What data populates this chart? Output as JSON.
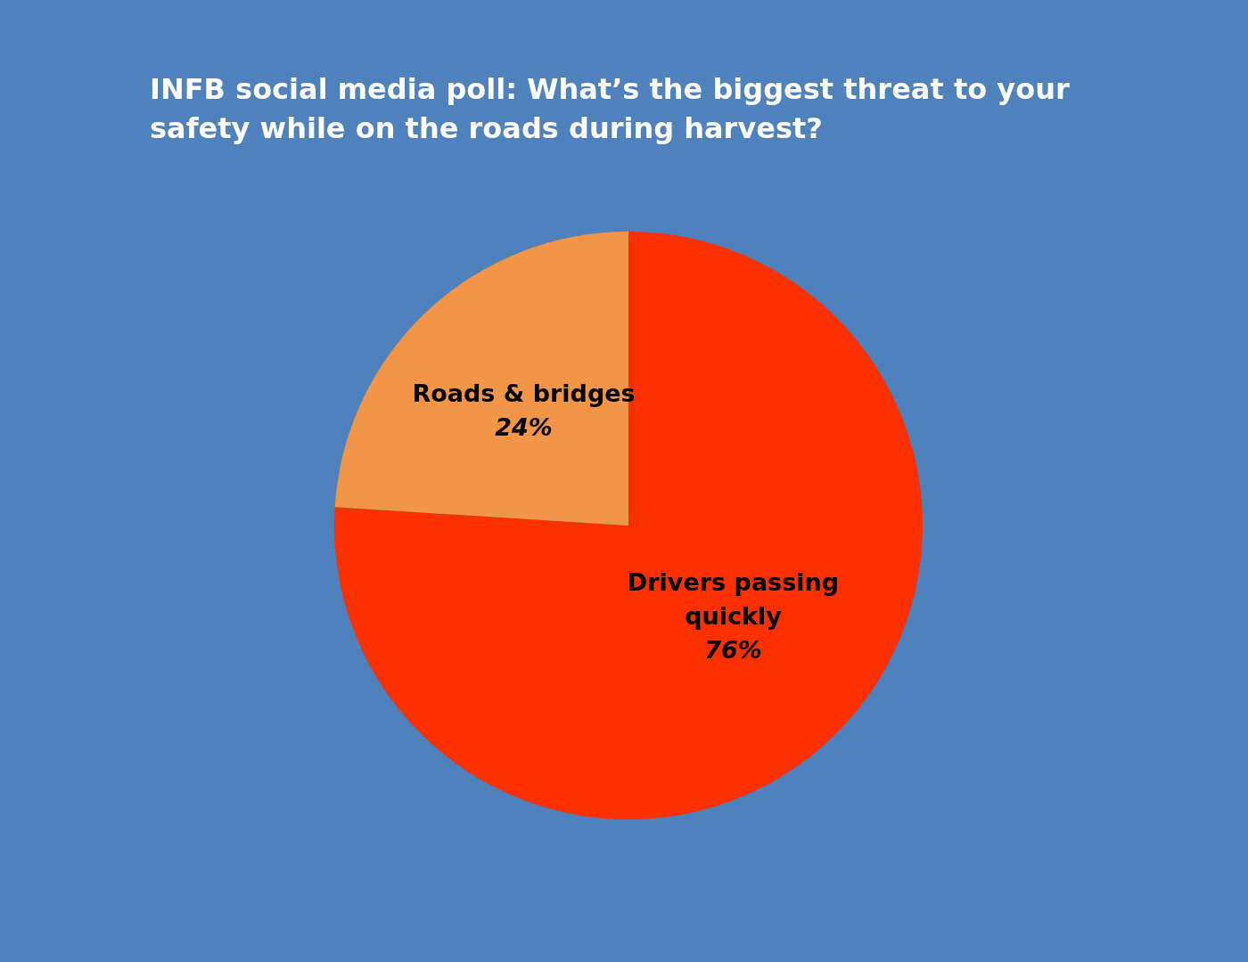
{
  "chart_data": {
    "type": "pie",
    "title": "INFB social media poll: What’s the biggest threat to your safety while on the roads during harvest?",
    "categories": [
      "Drivers passing quickly",
      "Roads & bridges"
    ],
    "values": [
      76,
      24
    ],
    "value_labels": [
      "76%",
      "24%"
    ],
    "colors": [
      "#fd3000",
      "#f39547"
    ],
    "legend": false
  }
}
